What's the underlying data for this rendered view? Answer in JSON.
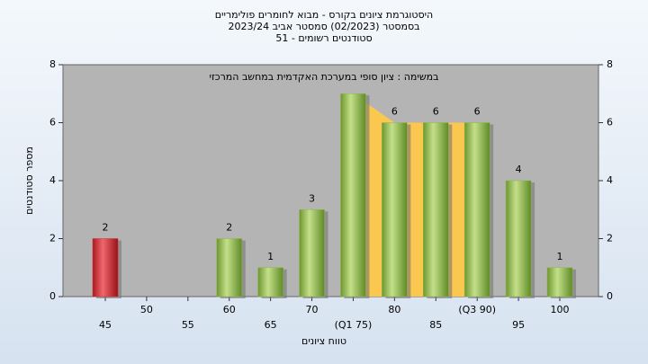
{
  "chart_data": {
    "type": "bar",
    "title": [
      "היסטוגרמת ציונים בקורס - מבוא לחומרים פולימריים",
      "בסמסטר  (02/2023)  סמסטר אביב 2023/24",
      "סטודנטים רשומים - 51"
    ],
    "annotation": "במשימה : ציון סופי במערכת האקדמית במחשב המרכזי",
    "x_label": "טווח ציונים",
    "y_label": "מספר סטודנטים",
    "categories": [
      "45",
      "50",
      "55",
      "60",
      "65",
      "70",
      "(Q1 75)",
      "80",
      "85",
      "(Q3 90)",
      "95",
      "100"
    ],
    "values": [
      2,
      0,
      0,
      2,
      1,
      3,
      7,
      6,
      6,
      6,
      4,
      1
    ],
    "value_labels": [
      "2",
      null,
      null,
      "2",
      "1",
      "3",
      null,
      "6",
      "6",
      "6",
      "4",
      "1"
    ],
    "colors": [
      "#d42a30",
      "#8db64a",
      "#8db64a",
      "#8db64a",
      "#8db64a",
      "#8db64a",
      "#8db64a",
      "#8db64a",
      "#8db64a",
      "#8db64a",
      "#8db64a",
      "#8db64a"
    ],
    "ylim": [
      0,
      8
    ],
    "yticks": [
      0,
      2,
      4,
      6,
      8
    ],
    "y2lim": [
      0,
      8
    ],
    "y2ticks": [
      0,
      2,
      4,
      6,
      8
    ],
    "grid": false
  }
}
